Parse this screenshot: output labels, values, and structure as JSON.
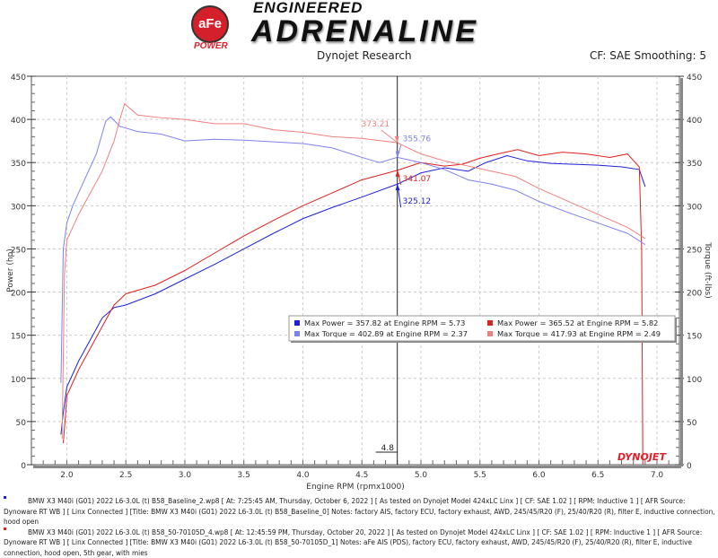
{
  "header": {
    "logo_brand": "aFe POWER",
    "logo_line1": "ENGINEERED",
    "logo_line2": "ADRENALINE",
    "center_title": "Dynojet Research",
    "right_info": "CF: SAE Smoothing: 5"
  },
  "chart_data": {
    "type": "line",
    "xlabel": "Engine RPM (rpmx1000)",
    "ylabel_left": "Power (hp)",
    "ylabel_right": "Torque (ft-lbs)",
    "xlim": [
      1.7,
      7.19
    ],
    "ylim": [
      0,
      450
    ],
    "x_ticks": [
      "2.0",
      "2.5",
      "3.0",
      "3.5",
      "4.0",
      "4.5",
      "5.0",
      "5.5",
      "6.0",
      "6.5",
      "7.0"
    ],
    "y_ticks": [
      "0",
      "50",
      "100",
      "150",
      "200",
      "250",
      "300",
      "350",
      "400",
      "450"
    ],
    "grid": true,
    "cursor": {
      "x": 4.8,
      "label": "4.8"
    },
    "series": [
      {
        "key": "power_baseline",
        "color": "#2020d8",
        "points": [
          [
            1.95,
            35
          ],
          [
            1.97,
            60
          ],
          [
            2.0,
            90
          ],
          [
            2.1,
            120
          ],
          [
            2.2,
            145
          ],
          [
            2.3,
            170
          ],
          [
            2.4,
            182
          ],
          [
            2.5,
            185
          ],
          [
            2.75,
            198
          ],
          [
            3.0,
            215
          ],
          [
            3.25,
            232
          ],
          [
            3.5,
            250
          ],
          [
            3.75,
            268
          ],
          [
            4.0,
            285
          ],
          [
            4.25,
            298
          ],
          [
            4.5,
            310
          ],
          [
            4.8,
            325
          ],
          [
            5.0,
            338
          ],
          [
            5.2,
            344
          ],
          [
            5.4,
            340
          ],
          [
            5.55,
            350
          ],
          [
            5.73,
            358
          ],
          [
            5.9,
            352
          ],
          [
            6.1,
            349
          ],
          [
            6.3,
            348
          ],
          [
            6.5,
            347
          ],
          [
            6.7,
            345
          ],
          [
            6.85,
            342
          ],
          [
            6.9,
            322
          ]
        ]
      },
      {
        "key": "power_afe",
        "color": "#e02020",
        "points": [
          [
            1.97,
            25
          ],
          [
            1.99,
            60
          ],
          [
            2.0,
            80
          ],
          [
            2.1,
            110
          ],
          [
            2.2,
            135
          ],
          [
            2.3,
            160
          ],
          [
            2.4,
            185
          ],
          [
            2.5,
            198
          ],
          [
            2.75,
            208
          ],
          [
            3.0,
            225
          ],
          [
            3.25,
            245
          ],
          [
            3.5,
            265
          ],
          [
            3.75,
            283
          ],
          [
            4.0,
            300
          ],
          [
            4.25,
            315
          ],
          [
            4.5,
            330
          ],
          [
            4.8,
            341
          ],
          [
            5.0,
            350
          ],
          [
            5.2,
            346
          ],
          [
            5.35,
            348
          ],
          [
            5.5,
            355
          ],
          [
            5.65,
            360
          ],
          [
            5.82,
            365
          ],
          [
            6.0,
            358
          ],
          [
            6.2,
            362
          ],
          [
            6.4,
            360
          ],
          [
            6.6,
            356
          ],
          [
            6.75,
            360
          ],
          [
            6.85,
            345
          ],
          [
            6.87,
            250
          ],
          [
            6.88,
            0
          ]
        ]
      },
      {
        "key": "torque_baseline",
        "color": "#8080f0",
        "points": [
          [
            1.95,
            95
          ],
          [
            1.97,
            250
          ],
          [
            2.0,
            280
          ],
          [
            2.05,
            300
          ],
          [
            2.15,
            330
          ],
          [
            2.25,
            360
          ],
          [
            2.33,
            398
          ],
          [
            2.37,
            403
          ],
          [
            2.45,
            392
          ],
          [
            2.6,
            386
          ],
          [
            2.8,
            383
          ],
          [
            3.0,
            375
          ],
          [
            3.25,
            377
          ],
          [
            3.5,
            376
          ],
          [
            3.75,
            374
          ],
          [
            4.0,
            372
          ],
          [
            4.25,
            367
          ],
          [
            4.5,
            356
          ],
          [
            4.65,
            350
          ],
          [
            4.8,
            356
          ],
          [
            5.0,
            350
          ],
          [
            5.2,
            342
          ],
          [
            5.4,
            330
          ],
          [
            5.6,
            325
          ],
          [
            5.8,
            318
          ],
          [
            6.0,
            305
          ],
          [
            6.25,
            292
          ],
          [
            6.5,
            280
          ],
          [
            6.75,
            268
          ],
          [
            6.9,
            255
          ]
        ]
      },
      {
        "key": "torque_afe",
        "color": "#f08080",
        "points": [
          [
            1.96,
            30
          ],
          [
            1.98,
            220
          ],
          [
            2.0,
            260
          ],
          [
            2.1,
            290
          ],
          [
            2.2,
            315
          ],
          [
            2.3,
            340
          ],
          [
            2.4,
            375
          ],
          [
            2.46,
            405
          ],
          [
            2.49,
            418
          ],
          [
            2.6,
            405
          ],
          [
            2.8,
            402
          ],
          [
            3.0,
            400
          ],
          [
            3.25,
            395
          ],
          [
            3.5,
            395
          ],
          [
            3.75,
            388
          ],
          [
            4.0,
            385
          ],
          [
            4.25,
            380
          ],
          [
            4.5,
            378
          ],
          [
            4.8,
            373
          ],
          [
            5.0,
            360
          ],
          [
            5.2,
            352
          ],
          [
            5.4,
            346
          ],
          [
            5.6,
            340
          ],
          [
            5.8,
            334
          ],
          [
            6.0,
            320
          ],
          [
            6.25,
            305
          ],
          [
            6.5,
            290
          ],
          [
            6.75,
            275
          ],
          [
            6.9,
            262
          ]
        ]
      }
    ],
    "annotations": [
      {
        "text": "373.21",
        "x": 4.8,
        "y": 373.21,
        "color": "#f08080"
      },
      {
        "text": "355.76",
        "x": 4.8,
        "y": 355.76,
        "color": "#8080f0"
      },
      {
        "text": "341.07",
        "x": 4.8,
        "y": 341.07,
        "color": "#e02020"
      },
      {
        "text": "325.12",
        "x": 4.8,
        "y": 325.12,
        "color": "#2020d8"
      }
    ],
    "legend": {
      "placement": "center-right",
      "entries": [
        {
          "text": "Max Power = 357.82 at Engine RPM = 5.73",
          "color": "#2020d8"
        },
        {
          "text": "Max Torque = 402.89 at Engine RPM = 2.37",
          "color": "#8080f0"
        },
        {
          "text": "Max Power = 365.52 at Engine RPM = 5.82",
          "color": "#e02020"
        },
        {
          "text": "Max Torque = 417.93 at Engine RPM = 2.49",
          "color": "#f08080"
        }
      ]
    },
    "watermark": "DYNOJET"
  },
  "notes": [
    {
      "color": "#2020d8",
      "text": "BMW X3 M40i (G01) 2022 L6-3.0L (t) B58_Baseline_2.wp8 [ At: 7:25:45 AM, Thursday, October 6, 2022 ] [ As tested on Dynojet Model 424xLC Linx ] [ CF: SAE 1.02 ] [ RPM: Inductive 1 ] [ AFR Source: Dynoware RT WB ] [ Linx Connected ] [Title: BMW X3 M40i (G01) 2022 L6-3.0L (t) B58_Baseline_0]  Notes: factory AIS, factory ECU, factory exhaust, AWD, 245/45/R20 (F), 25/40/R20 (R), filter E, inductive connection, hood open"
    },
    {
      "color": "#e02020",
      "text": "BMW X3 M40i (G01) 2022 L6-3.0L (t) B58_50-70105D_4.wp8 [ At: 12:45:59 PM, Thursday, October 20, 2022 ] [ As tested on Dynojet Model 424xLC Linx ] [ CF: SAE 1.02 ] [ RPM: Inductive 1 ] [ AFR Source: Dynoware RT WB ] [ Linx Connected ] [Title: BMW X3 M40i (G01) 2022 L6-3.0L (t) B58_50-70105D_1]  Notes: aFe AIS (PDS), factory ECU, factory exhaust, AWD, 245/45/R20 (F), 25/40/R20 (R), filter E, inductive connection, hood open, 5th gear, with mies"
    }
  ]
}
